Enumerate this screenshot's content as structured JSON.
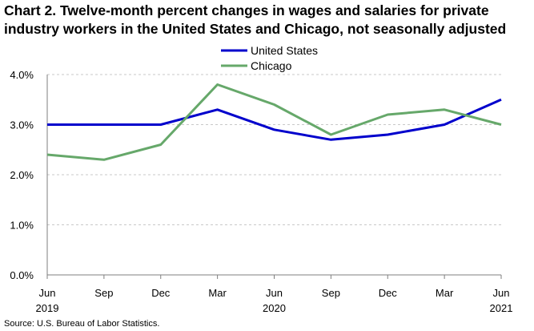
{
  "chart_data": {
    "type": "line",
    "title_line1": "Chart 2. Twelve-month percent changes in wages and salaries for private",
    "title_line2": "industry workers in the United States and Chicago, not seasonally adjusted",
    "categories": [
      "Jun",
      "Sep",
      "Dec",
      "Mar",
      "Jun",
      "Sep",
      "Dec",
      "Mar",
      "Jun"
    ],
    "year_labels": [
      {
        "index": 0,
        "label": "2019"
      },
      {
        "index": 4,
        "label": "2020"
      },
      {
        "index": 8,
        "label": "2021"
      }
    ],
    "y_ticks": [
      "0.0%",
      "1.0%",
      "2.0%",
      "3.0%",
      "4.0%"
    ],
    "ylim": [
      0,
      4
    ],
    "legend_position": "top-center",
    "series": [
      {
        "name": "United States",
        "color": "#0000CC",
        "values": [
          3.0,
          3.0,
          3.0,
          3.3,
          2.9,
          2.7,
          2.8,
          3.0,
          3.5
        ]
      },
      {
        "name": "Chicago",
        "color": "#66A86A",
        "values": [
          2.4,
          2.3,
          2.6,
          3.8,
          3.4,
          2.8,
          3.2,
          3.3,
          3.0
        ]
      }
    ],
    "source": "Source: U.S. Bureau of Labor Statistics."
  }
}
